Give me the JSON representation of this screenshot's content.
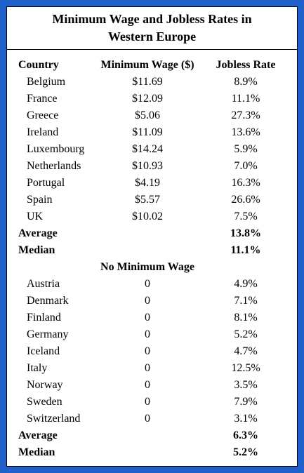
{
  "title": "Minimum Wage and Jobless Rates in Western Europe",
  "header": [
    "Country",
    "Minimum Wage ($)",
    "Jobless Rate"
  ],
  "group1": {
    "rows": [
      [
        "Belgium",
        "$11.69",
        "8.9%"
      ],
      [
        "France",
        "$12.09",
        "11.1%"
      ],
      [
        "Greece",
        "$5.06",
        "27.3%"
      ],
      [
        "Ireland",
        "$11.09",
        "13.6%"
      ],
      [
        "Luxembourg",
        "$14.24",
        "5.9%"
      ],
      [
        "Netherlands",
        "$10.93",
        "7.0%"
      ],
      [
        "Portugal",
        "$4.19",
        "16.3%"
      ],
      [
        "Spain",
        "$5.57",
        "26.6%"
      ],
      [
        "UK",
        "$10.02",
        "7.5%"
      ]
    ],
    "average": [
      "Average",
      "13.8%"
    ],
    "median": [
      "Median",
      "11.1%"
    ]
  },
  "group2": {
    "heading": "No Minimum Wage",
    "rows": [
      [
        "Austria",
        "0",
        "4.9%"
      ],
      [
        "Denmark",
        "0",
        "7.1%"
      ],
      [
        "Finland",
        "0",
        "8.1%"
      ],
      [
        "Germany",
        "0",
        "5.2%"
      ],
      [
        "Iceland",
        "0",
        "4.7%"
      ],
      [
        "Italy",
        "0",
        "12.5%"
      ],
      [
        "Norway",
        "0",
        "3.5%"
      ],
      [
        "Sweden",
        "0",
        "7.9%"
      ],
      [
        "Switzerland",
        "0",
        "3.1%"
      ]
    ],
    "average": [
      "Average",
      "6.3%"
    ],
    "median": [
      "Median",
      "5.2%"
    ]
  }
}
